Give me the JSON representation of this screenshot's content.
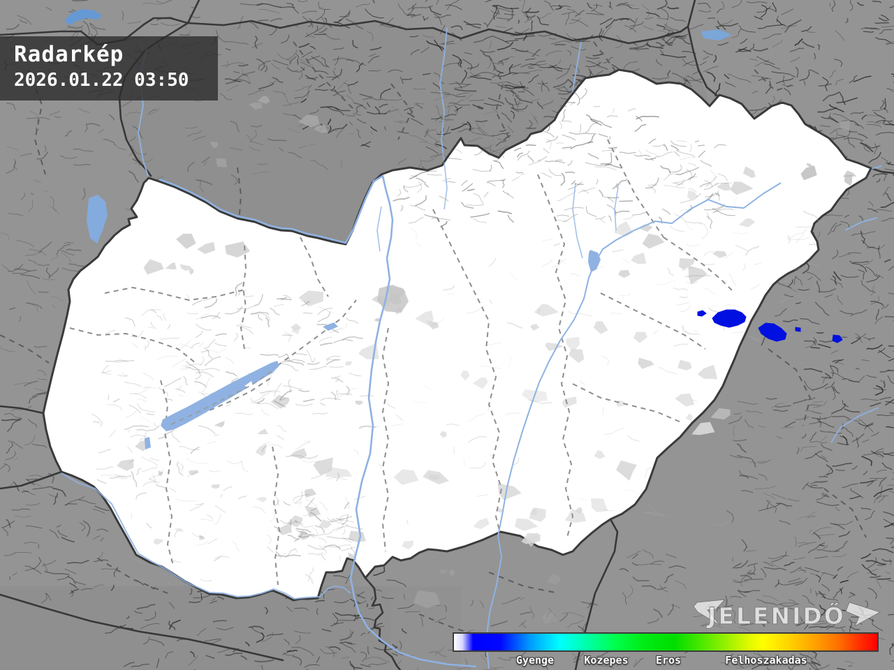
{
  "header": {
    "title": "Radarkép",
    "datetime": "2026.01.22 03:50"
  },
  "legend": {
    "labels": [
      "Gyenge",
      "Kozepes",
      "Eros",
      "Felhoszakadas"
    ],
    "scale_colors": [
      "#ffffff",
      "#0000ff",
      "#00ffff",
      "#00ff00",
      "#ffff00",
      "#ff8000",
      "#ff0000"
    ]
  },
  "branding": {
    "logo_text": "JELENIDŐ"
  },
  "map": {
    "colors": {
      "radar_echo": "#0010e0",
      "water": "#8fb2e2",
      "country_fill": "#ffffff",
      "outside_fill": "#949494",
      "border": "#3a3a3a"
    },
    "radar_echoes": [
      [
        [
          999,
          447
        ],
        [
          1006,
          445
        ],
        [
          1011,
          449
        ],
        [
          1005,
          453
        ],
        [
          999,
          452
        ]
      ],
      [
        [
          1020,
          456
        ],
        [
          1028,
          448
        ],
        [
          1040,
          444
        ],
        [
          1052,
          444
        ],
        [
          1062,
          448
        ],
        [
          1068,
          454
        ],
        [
          1066,
          461
        ],
        [
          1056,
          466
        ],
        [
          1044,
          469
        ],
        [
          1032,
          466
        ],
        [
          1023,
          462
        ]
      ],
      [
        [
          1086,
          470
        ],
        [
          1096,
          463
        ],
        [
          1108,
          464
        ],
        [
          1118,
          470
        ],
        [
          1126,
          478
        ],
        [
          1124,
          486
        ],
        [
          1112,
          489
        ],
        [
          1100,
          485
        ],
        [
          1090,
          478
        ]
      ],
      [
        [
          1139,
          469
        ],
        [
          1146,
          470
        ],
        [
          1146,
          475
        ],
        [
          1139,
          474
        ]
      ],
      [
        [
          1193,
          480
        ],
        [
          1202,
          481
        ],
        [
          1206,
          487
        ],
        [
          1199,
          491
        ],
        [
          1192,
          488
        ]
      ]
    ]
  }
}
